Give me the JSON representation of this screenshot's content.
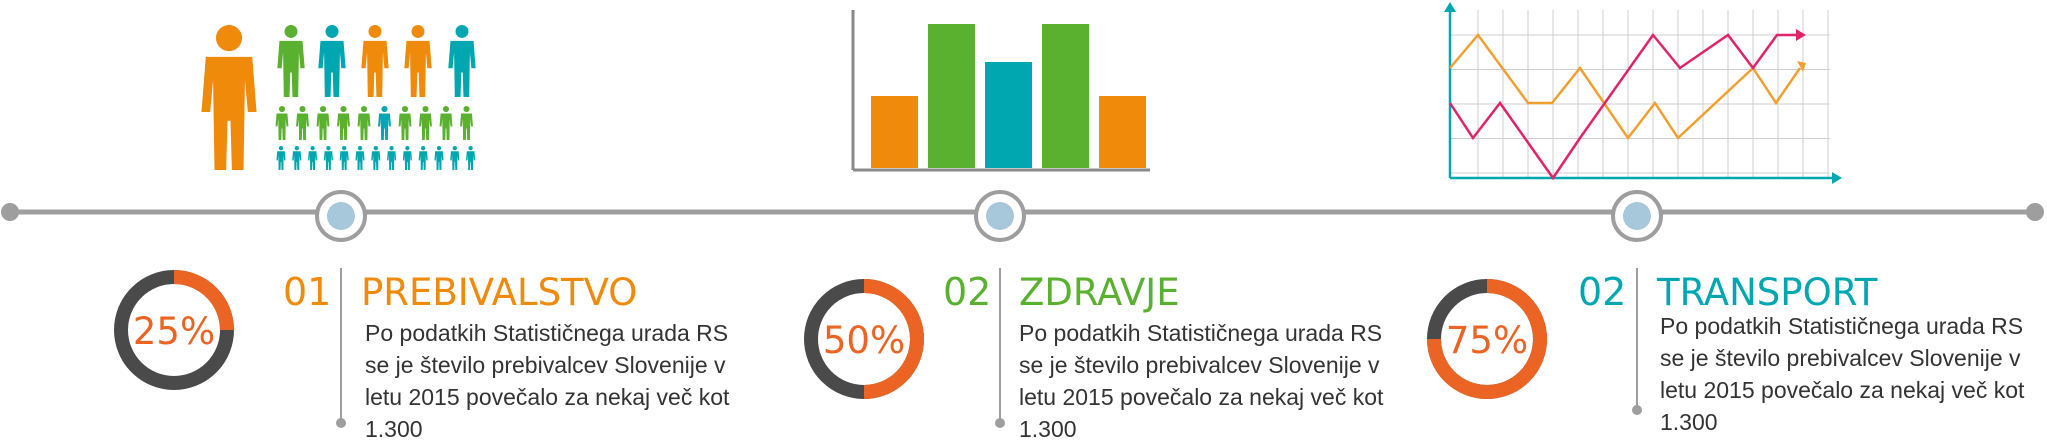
{
  "colors": {
    "orange": "#EF8A0B",
    "green": "#5AB12F",
    "teal": "#00A7B0",
    "red_orange": "#EB6423",
    "dark_gray": "#4A4A4A",
    "timeline_gray": "#9E9E9E",
    "node_blue": "#A7C7DA",
    "pink": "#E0246A",
    "grid": "#CFCFCF"
  },
  "illustrations": {
    "people_icon": "people-group-icon",
    "bar_chart_icon": "bar-chart-icon",
    "line_chart_icon": "line-chart-icon"
  },
  "sections": [
    {
      "number": "01",
      "title": "PREBIVALSTVO",
      "percent_label": "25%",
      "percent_value": 0.25,
      "accent": "#EF8A0B",
      "text_lines": [
        "Po podatkih Statističnega urada RS",
        "se je število prebivalcev Slovenije v",
        "letu 2015 povečalo za nekaj več kot",
        "1.300"
      ]
    },
    {
      "number": "02",
      "title": "ZDRAVJE",
      "percent_label": "50%",
      "percent_value": 0.5,
      "accent": "#5AB12F",
      "text_lines": [
        "Po podatkih Statističnega urada RS",
        "se je število prebivalcev Slovenije v",
        "letu 2015 povečalo za nekaj več kot",
        "1.300"
      ]
    },
    {
      "number": "02",
      "title": "TRANSPORT",
      "percent_label": "75%",
      "percent_value": 0.75,
      "accent": "#00A7B0",
      "text_lines": [
        "Po podatkih Statističnega urada RS",
        "se je število prebivalcev Slovenije v",
        "letu 2015 povečalo za nekaj več kot",
        "1.300"
      ]
    }
  ]
}
